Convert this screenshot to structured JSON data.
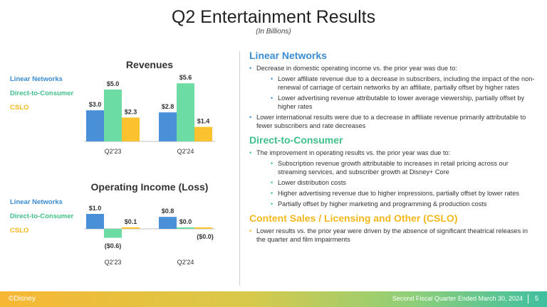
{
  "header": {
    "title": "Q2 Entertainment Results",
    "subtitle": "(In Billions)"
  },
  "colors": {
    "linear": "#4a90d9",
    "dtc": "#6ddba4",
    "cslo": "#f9c22e",
    "linear_head": "#3b8cd1",
    "dtc_head": "#3fbf8b",
    "cslo_head": "#f5b81c"
  },
  "legend": {
    "linear": "Linear Networks",
    "dtc": "Direct-to-Consumer",
    "cslo": "CSLO"
  },
  "chart_data": [
    {
      "type": "bar",
      "title": "Revenues",
      "categories": [
        "Q2'23",
        "Q2'24"
      ],
      "series": [
        {
          "name": "Linear Networks",
          "values": [
            3.0,
            2.8
          ],
          "labels": [
            "$3.0",
            "$2.8"
          ]
        },
        {
          "name": "Direct-to-Consumer",
          "values": [
            5.0,
            5.6
          ],
          "labels": [
            "$5.0",
            "$5.6"
          ]
        },
        {
          "name": "CSLO",
          "values": [
            2.3,
            1.4
          ],
          "labels": [
            "$2.3",
            "$1.4"
          ]
        }
      ],
      "ylim": [
        0,
        5.6
      ]
    },
    {
      "type": "bar",
      "title": "Operating Income (Loss)",
      "categories": [
        "Q2'23",
        "Q2'24"
      ],
      "series": [
        {
          "name": "Linear Networks",
          "values": [
            1.0,
            0.8
          ],
          "labels": [
            "$1.0",
            "$0.8"
          ]
        },
        {
          "name": "Direct-to-Consumer",
          "values": [
            -0.6,
            0.0
          ],
          "labels": [
            "($0.6)",
            "$0.0"
          ]
        },
        {
          "name": "CSLO",
          "values": [
            0.1,
            -0.0
          ],
          "labels": [
            "$0.1",
            "($0.0)"
          ]
        }
      ],
      "ylim": [
        -0.6,
        1.0
      ]
    }
  ],
  "sections": [
    {
      "heading": "Linear Networks",
      "items": [
        {
          "text": "Decrease in domestic operating income vs. the prior year was due to:",
          "sub": [
            "Lower affiliate revenue due to a decrease in subscribers, including the impact of the non-renewal of carriage of certain networks by an affiliate, partially offset by higher rates",
            "Lower advertising revenue attributable to lower average viewership, partially offset by higher rates"
          ]
        },
        {
          "text": "Lower international results were due to a decrease in affiliate revenue primarily attributable to fewer subscribers and rate decreases",
          "sub": []
        }
      ]
    },
    {
      "heading": "Direct-to-Consumer",
      "items": [
        {
          "text": "The improvement in operating results vs. the prior year was due to:",
          "sub": [
            "Subscription revenue growth attributable to increases in retail pricing across our streaming services, and subscriber growth at Disney+ Core",
            "Lower distribution costs",
            "Higher advertising revenue due to higher impressions, partially offset by lower rates",
            "Partially offset by higher marketing and programming & production costs"
          ]
        }
      ]
    },
    {
      "heading": "Content Sales / Licensing and Other (CSLO)",
      "items": [
        {
          "text": "Lower results vs. the prior year were driven by the absence of significant theatrical releases in the quarter and film impairments",
          "sub": []
        }
      ]
    }
  ],
  "footer": {
    "logo": "©Disney",
    "text": "Second Fiscal Quarter Ended March 30, 2024",
    "page": "5"
  }
}
